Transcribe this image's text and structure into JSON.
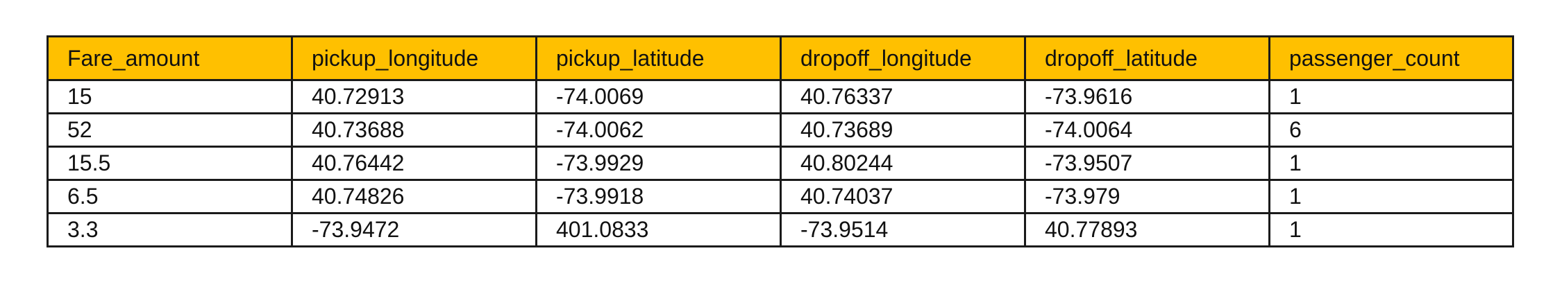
{
  "table": {
    "headers": [
      "Fare_amount",
      "pickup_longitude",
      "pickup_latitude",
      "dropoff_longitude",
      "dropoff_latitude",
      "passenger_count"
    ],
    "rows": [
      [
        "15",
        "40.72913",
        "-74.0069",
        "40.76337",
        "-73.9616",
        "1"
      ],
      [
        "52",
        "40.73688",
        "-74.0062",
        "40.73689",
        "-74.0064",
        "6"
      ],
      [
        "15.5",
        "40.76442",
        "-73.9929",
        "40.80244",
        "-73.9507",
        "1"
      ],
      [
        "6.5",
        "40.74826",
        "-73.9918",
        "40.74037",
        "-73.979",
        "1"
      ],
      [
        "3.3",
        "-73.9472",
        "401.0833",
        "-73.9514",
        "40.77893",
        "1"
      ]
    ]
  },
  "colors": {
    "header_background": "#ffc000",
    "border": "#1a1a1a",
    "text": "#111111"
  }
}
